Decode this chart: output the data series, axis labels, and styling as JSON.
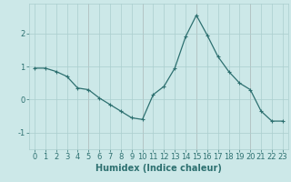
{
  "x": [
    0,
    1,
    2,
    3,
    4,
    5,
    6,
    7,
    8,
    9,
    10,
    11,
    12,
    13,
    14,
    15,
    16,
    17,
    18,
    19,
    20,
    21,
    22,
    23
  ],
  "y": [
    0.95,
    0.95,
    0.85,
    0.7,
    0.35,
    0.3,
    0.05,
    -0.15,
    -0.35,
    -0.55,
    -0.6,
    0.15,
    0.4,
    0.95,
    1.9,
    2.55,
    1.95,
    1.3,
    0.85,
    0.5,
    0.3,
    -0.35,
    -0.65,
    -0.65
  ],
  "line_color": "#2d7070",
  "marker": "+",
  "marker_size": 3,
  "marker_lw": 0.8,
  "bg_color": "#cce8e8",
  "grid_color_minor": "#aacece",
  "grid_color_red": "#cc9999",
  "xlabel": "Humidex (Indice chaleur)",
  "xlim": [
    -0.5,
    23.5
  ],
  "ylim": [
    -1.5,
    2.9
  ],
  "yticks": [
    -1,
    0,
    1,
    2
  ],
  "xticks": [
    0,
    1,
    2,
    3,
    4,
    5,
    6,
    7,
    8,
    9,
    10,
    11,
    12,
    13,
    14,
    15,
    16,
    17,
    18,
    19,
    20,
    21,
    22,
    23
  ],
  "red_vlines": [
    5,
    10,
    15,
    20
  ],
  "tick_fontsize": 6,
  "xlabel_fontsize": 7,
  "line_width": 0.9
}
